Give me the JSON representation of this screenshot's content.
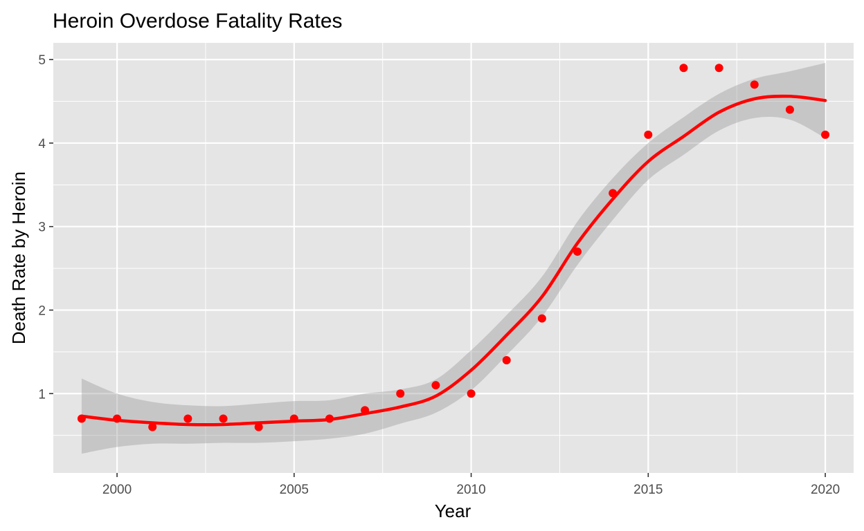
{
  "chart_data": {
    "type": "scatter",
    "title": "Heroin Overdose Fatality Rates",
    "xlabel": "Year",
    "ylabel": "Death Rate by Heroin",
    "xlim": [
      1998.2,
      2020.8
    ],
    "ylim": [
      0.05,
      5.2
    ],
    "x_ticks": [
      2000,
      2005,
      2010,
      2015,
      2020
    ],
    "y_ticks": [
      1,
      2,
      3,
      4,
      5
    ],
    "grid": true,
    "legend": "none",
    "colors": {
      "panel": "#e5e5e5",
      "grid": "#ffffff",
      "point": "#d62d3a",
      "point_bright": "#ff0000",
      "smooth_line": "#ff0000",
      "ribbon": "#bdbdbd",
      "tick_text": "#4d4d4d",
      "tick_mark": "#333333"
    },
    "series": [
      {
        "type": "points",
        "x": [
          1999,
          2000,
          2001,
          2002,
          2003,
          2004,
          2005,
          2006,
          2007,
          2008,
          2009,
          2010,
          2011,
          2012,
          2013,
          2014,
          2015,
          2016,
          2017,
          2018,
          2019,
          2020
        ],
        "y": [
          0.7,
          0.7,
          0.6,
          0.7,
          0.7,
          0.6,
          0.7,
          0.7,
          0.8,
          1.0,
          1.1,
          1.0,
          1.4,
          1.9,
          2.7,
          3.4,
          4.1,
          4.9,
          4.9,
          4.7,
          4.4,
          4.1
        ]
      },
      {
        "type": "smooth",
        "x": [
          1999,
          2000,
          2001,
          2002,
          2003,
          2004,
          2005,
          2006,
          2007,
          2008,
          2009,
          2010,
          2011,
          2012,
          2013,
          2014,
          2015,
          2016,
          2017,
          2018,
          2019,
          2020
        ],
        "y": [
          0.73,
          0.68,
          0.65,
          0.63,
          0.63,
          0.65,
          0.67,
          0.69,
          0.76,
          0.84,
          0.97,
          1.28,
          1.7,
          2.16,
          2.8,
          3.33,
          3.78,
          4.08,
          4.37,
          4.53,
          4.56,
          4.51
        ],
        "lower": [
          0.28,
          0.36,
          0.4,
          0.4,
          0.41,
          0.41,
          0.43,
          0.46,
          0.52,
          0.64,
          0.77,
          1.04,
          1.46,
          1.92,
          2.54,
          3.08,
          3.56,
          3.86,
          4.15,
          4.3,
          4.28,
          4.06
        ],
        "upper": [
          1.18,
          1.0,
          0.9,
          0.86,
          0.85,
          0.88,
          0.91,
          0.92,
          1.0,
          1.05,
          1.17,
          1.52,
          1.94,
          2.4,
          3.06,
          3.58,
          4.0,
          4.31,
          4.59,
          4.77,
          4.86,
          4.96
        ]
      }
    ]
  }
}
